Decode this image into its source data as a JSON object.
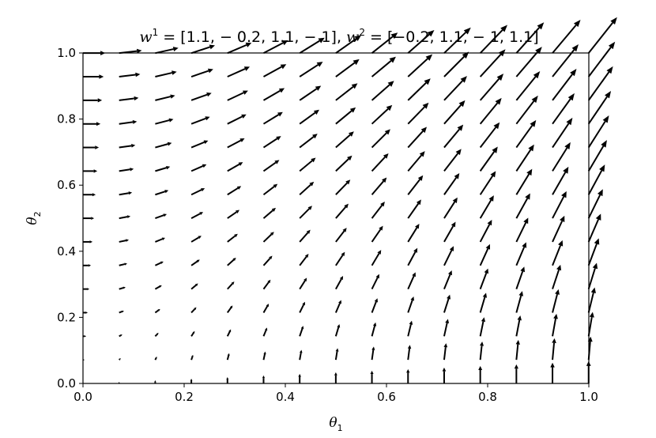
{
  "chart_data": {
    "type": "quiver",
    "title": {
      "w1_base": "w",
      "w1_sup": "1",
      "w1_value": " = [1.1, − 0.2, 1.1, − 1], ",
      "w2_base": "w",
      "w2_sup": "2",
      "w2_value": " = [−0.2, 1.1, − 1, 1.1]"
    },
    "xlabel": {
      "base": "θ",
      "sub": "1"
    },
    "ylabel": {
      "base": "θ",
      "sub": "2"
    },
    "xlim": [
      0.0,
      1.0
    ],
    "ylim": [
      0.0,
      1.0
    ],
    "xticks": [
      "0.0",
      "0.2",
      "0.4",
      "0.6",
      "0.8",
      "1.0"
    ],
    "yticks": [
      "0.0",
      "0.2",
      "0.4",
      "0.6",
      "0.8",
      "1.0"
    ],
    "grid": false,
    "vector_field": {
      "grid_x": {
        "start": 0.0,
        "step": 0.0714,
        "count": 15
      },
      "grid_y": {
        "start": 0.0,
        "step": 0.0714,
        "count": 15
      },
      "w1": [
        1.1,
        -0.2,
        1.1,
        -1
      ],
      "w2": [
        -0.2,
        1.1,
        -1,
        1.1
      ],
      "arrow_color": "#000000"
    }
  }
}
